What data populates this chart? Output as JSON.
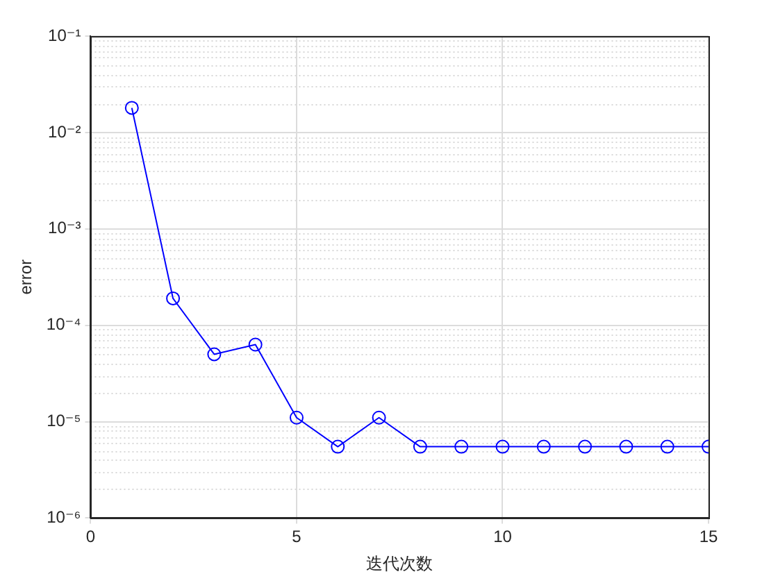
{
  "chart_data": {
    "type": "line",
    "xlabel": "迭代次数",
    "ylabel": "error",
    "log": "y",
    "grid": true,
    "marker": "circle",
    "line_style": "solid",
    "legend": false,
    "x": [
      1,
      2,
      3,
      4,
      5,
      6,
      7,
      8,
      9,
      10,
      11,
      12,
      13,
      14,
      15
    ],
    "series": [
      {
        "color": "#0000ff",
        "values": [
          0.018,
          0.00019,
          5e-05,
          6.3e-05,
          1.1e-05,
          5.5e-06,
          1.1e-05,
          5.5e-06,
          5.5e-06,
          5.5e-06,
          5.5e-06,
          5.5e-06,
          5.5e-06,
          5.5e-06,
          5.5e-06
        ]
      }
    ],
    "xlim": [
      0,
      15
    ],
    "xticks": [
      0,
      5,
      10,
      15
    ],
    "ylim": [
      1e-06,
      0.1
    ],
    "yticks": [
      {
        "value": 1e-06,
        "label": "10⁻⁶"
      },
      {
        "value": 1e-05,
        "label": "10⁻⁵"
      },
      {
        "value": 0.0001,
        "label": "10⁻⁴"
      },
      {
        "value": 0.001,
        "label": "10⁻³"
      },
      {
        "value": 0.01,
        "label": "10⁻²"
      },
      {
        "value": 0.1,
        "label": "10⁻¹"
      }
    ]
  }
}
